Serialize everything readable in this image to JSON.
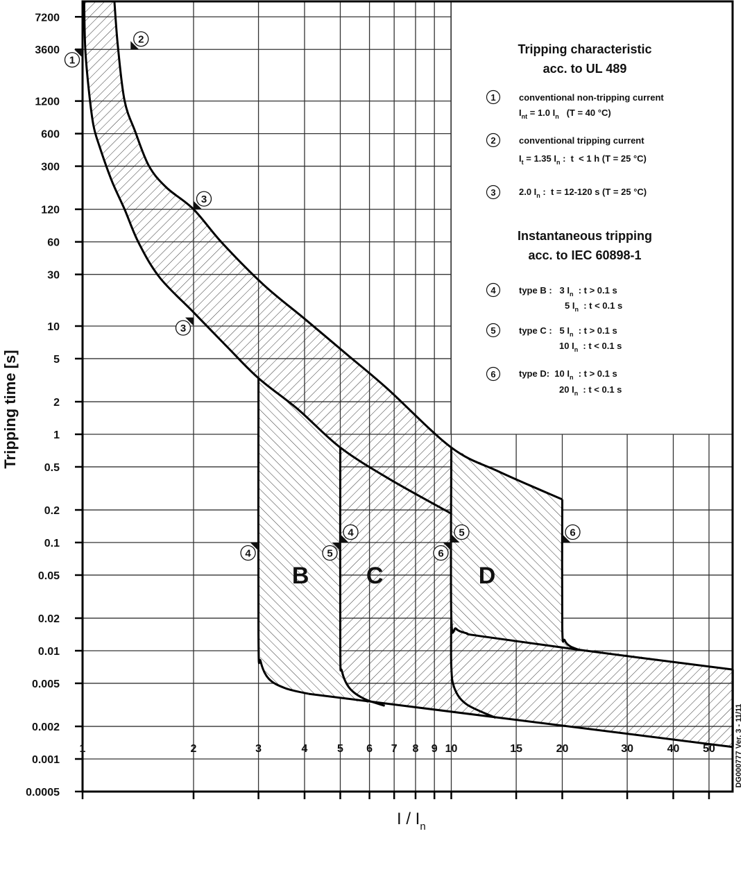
{
  "chart_data": {
    "type": "line",
    "x_scale": "log",
    "y_scale": "log",
    "xlim": [
      1,
      58
    ],
    "ylim": [
      0.0005,
      10000
    ],
    "grid": true,
    "xlabel": {
      "main": "I / I",
      "sub": "n"
    },
    "ylabel": "Tripping time [s]",
    "x_ticks": [
      1,
      2,
      3,
      4,
      5,
      6,
      7,
      8,
      9,
      10,
      15,
      20,
      30,
      40,
      50
    ],
    "x_tick_labels": [
      "1",
      "2",
      "3",
      "4",
      "5",
      "6",
      "7",
      "8",
      "9",
      "10",
      "15",
      "20",
      "30",
      "40",
      "50"
    ],
    "y_ticks": [
      7200,
      3600,
      1200,
      600,
      300,
      120,
      60,
      30,
      10,
      5,
      2,
      1,
      0.5,
      0.2,
      0.1,
      0.05,
      0.02,
      0.01,
      0.005,
      0.002,
      0.001,
      0.0005
    ],
    "y_tick_labels": [
      "7200",
      "3600",
      "1200",
      "600",
      "300",
      "120",
      "60",
      "30",
      "10",
      "5",
      "2",
      "1",
      "0.5",
      "0.2",
      "0.1",
      "0.05",
      "0.02",
      "0.01",
      "0.005",
      "0.002",
      "0.001",
      "0.0005"
    ],
    "boundaries": {
      "lower": [
        [
          1.01,
          10000
        ],
        [
          1.017,
          3660
        ],
        [
          1.04,
          1510
        ],
        [
          1.07,
          720
        ],
        [
          1.11,
          464
        ],
        [
          1.2,
          220
        ],
        [
          1.3,
          120
        ],
        [
          1.42,
          58.7
        ],
        [
          1.62,
          28
        ],
        [
          2.0,
          13.4
        ],
        [
          2.47,
          6.4
        ],
        [
          3.0,
          3.3
        ],
        [
          3.84,
          1.7
        ],
        [
          5.0,
          0.755
        ],
        [
          6.76,
          0.39
        ],
        [
          10,
          0.185
        ]
      ],
      "upper": [
        [
          1.22,
          10000
        ],
        [
          1.247,
          3830
        ],
        [
          1.3,
          1210
        ],
        [
          1.39,
          624
        ],
        [
          1.515,
          300
        ],
        [
          1.69,
          190
        ],
        [
          2.0,
          120
        ],
        [
          2.39,
          58.7
        ],
        [
          3.1,
          24
        ],
        [
          4.01,
          11.6
        ],
        [
          5.2,
          5.5
        ],
        [
          6.7,
          2.65
        ],
        [
          10,
          0.755
        ],
        [
          13.5,
          0.45
        ],
        [
          20,
          0.25
        ]
      ],
      "b_drop": [
        [
          3,
          3.3
        ],
        [
          3,
          0.014
        ],
        [
          3.04,
          0.008
        ],
        [
          3.2,
          0.0055
        ],
        [
          3.55,
          0.0045
        ],
        [
          4.1,
          0.004
        ]
      ],
      "c_drop": [
        [
          5,
          0.755
        ],
        [
          5,
          0.0108
        ],
        [
          5.05,
          0.0065
        ],
        [
          5.3,
          0.0045
        ],
        [
          5.8,
          0.0036
        ],
        [
          6.6,
          0.0031
        ]
      ],
      "d_drop_inner": [
        [
          10,
          0.755
        ],
        [
          10,
          0.021
        ],
        [
          10.3,
          0.016
        ],
        [
          11,
          0.0145
        ],
        [
          11.9,
          0.0137
        ],
        [
          22.2,
          0.0102
        ],
        [
          58,
          0.0067
        ]
      ],
      "d_drop_lower": [
        [
          10,
          0.021
        ],
        [
          10,
          0.0072
        ],
        [
          10.2,
          0.0045
        ],
        [
          11,
          0.0032
        ],
        [
          13.2,
          0.0024
        ]
      ],
      "d_20": [
        [
          20,
          0.25
        ],
        [
          20,
          0.0163
        ],
        [
          20.3,
          0.0125
        ],
        [
          21,
          0.011
        ],
        [
          22.2,
          0.0102
        ]
      ],
      "bottom": [
        [
          4.1,
          0.004
        ],
        [
          58,
          0.00129
        ]
      ],
      "right_edge": [
        [
          58,
          0.00129
        ],
        [
          58,
          0.0067
        ]
      ]
    },
    "region_labels": [
      {
        "text": "B",
        "x": 3.9,
        "y": 0.05
      },
      {
        "text": "C",
        "x": 6.2,
        "y": 0.05
      },
      {
        "text": "D",
        "x": 12.5,
        "y": 0.05
      }
    ],
    "markers": [
      {
        "label": "1",
        "x": 1.0,
        "y": 3600,
        "side": "left"
      },
      {
        "label": "2",
        "x": 1.35,
        "y": 3600,
        "side": "right"
      },
      {
        "label": "3",
        "x": 2.0,
        "y": 120,
        "side": "right"
      },
      {
        "label": "3",
        "x": 2.0,
        "y": 12,
        "side": "left"
      },
      {
        "label": "4",
        "x": 3,
        "y": 0.1,
        "side": "left"
      },
      {
        "label": "4",
        "x": 5,
        "y": 0.1,
        "side": "right"
      },
      {
        "label": "5",
        "x": 5,
        "y": 0.1,
        "side": "left"
      },
      {
        "label": "5",
        "x": 10,
        "y": 0.1,
        "side": "right"
      },
      {
        "label": "6",
        "x": 10,
        "y": 0.1,
        "side": "left"
      },
      {
        "label": "6",
        "x": 20,
        "y": 0.1,
        "side": "right"
      }
    ],
    "legend": {
      "title1": [
        "Tripping characteristic",
        "acc. to UL 489"
      ],
      "title2": [
        "Instantaneous tripping",
        "acc. to IEC 60898-1"
      ],
      "items": [
        {
          "num": "1",
          "lines": [
            [
              {
                "t": "conventional non-tripping current"
              }
            ],
            [
              {
                "t": "I"
              },
              {
                "t": "nt",
                "sub": true
              },
              {
                "t": " = 1.0 I"
              },
              {
                "t": "n",
                "sub": true
              },
              {
                "t": "   (T = 40 °C)"
              }
            ]
          ]
        },
        {
          "num": "2",
          "lines": [
            [
              {
                "t": "conventional tripping current"
              }
            ],
            [
              {
                "t": "I"
              },
              {
                "t": "t",
                "sub": true
              },
              {
                "t": " = 1.35 I"
              },
              {
                "t": "n",
                "sub": true
              },
              {
                "t": " :  t  < 1 h (T = 25 °C)"
              }
            ]
          ]
        },
        {
          "num": "3",
          "lines": [
            [
              {
                "t": "2.0 I"
              },
              {
                "t": "n",
                "sub": true
              },
              {
                "t": " :  t = 12-120 s (T = 25 °C)"
              }
            ]
          ]
        },
        {
          "num": "4",
          "lines": [
            [
              {
                "t": "type B :   3 I"
              },
              {
                "t": "n",
                "sub": true
              },
              {
                "t": "  : t > 0.1 s"
              }
            ],
            [
              {
                "t": "5 I"
              },
              {
                "t": "n",
                "sub": true
              },
              {
                "t": "  : t < 0.1 s"
              }
            ]
          ]
        },
        {
          "num": "5",
          "lines": [
            [
              {
                "t": "type C :   5 I"
              },
              {
                "t": "n",
                "sub": true
              },
              {
                "t": "  : t > 0.1 s"
              }
            ],
            [
              {
                "t": "10 I"
              },
              {
                "t": "n",
                "sub": true
              },
              {
                "t": "  : t < 0.1 s"
              }
            ]
          ]
        },
        {
          "num": "6",
          "lines": [
            [
              {
                "t": "type D:  10 I"
              },
              {
                "t": "n",
                "sub": true
              },
              {
                "t": "  : t > 0.1 s"
              }
            ],
            [
              {
                "t": "20 I"
              },
              {
                "t": "n",
                "sub": true
              },
              {
                "t": "  : t < 0.1 s"
              }
            ]
          ]
        }
      ]
    },
    "doc_id": "DG000777 Ver. 3 - 11/11"
  }
}
